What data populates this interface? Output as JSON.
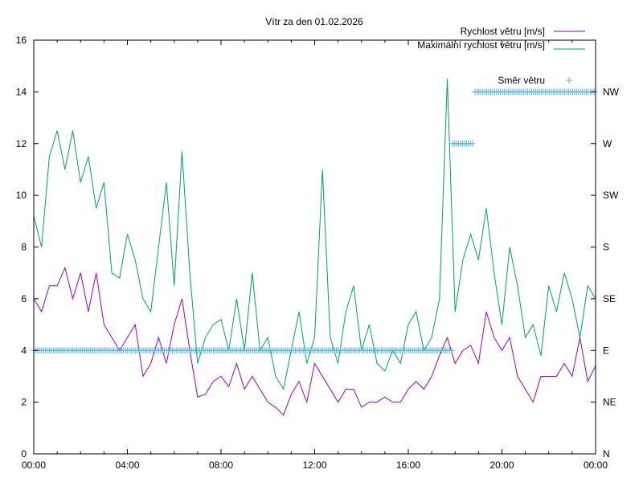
{
  "chart_data": {
    "type": "line",
    "title": "Vítr za den 01.02.2026",
    "xlabel": "",
    "ylabel": "",
    "x_unit": "hours",
    "xlim": [
      0,
      24
    ],
    "ylim": [
      0,
      16
    ],
    "y_ticks": [
      0,
      2,
      4,
      6,
      8,
      10,
      12,
      14,
      16
    ],
    "x_ticks": [
      {
        "value": 0,
        "label": "00:00"
      },
      {
        "value": 4,
        "label": "04:00"
      },
      {
        "value": 8,
        "label": "08:00"
      },
      {
        "value": 12,
        "label": "12:00"
      },
      {
        "value": 16,
        "label": "16:00"
      },
      {
        "value": 20,
        "label": "20:00"
      },
      {
        "value": 24,
        "label": "00:00"
      }
    ],
    "y2_ticks": [
      {
        "value": 0,
        "label": "N"
      },
      {
        "value": 2,
        "label": "NE"
      },
      {
        "value": 4,
        "label": "E"
      },
      {
        "value": 6,
        "label": "SE"
      },
      {
        "value": 8,
        "label": "S"
      },
      {
        "value": 10,
        "label": "SW"
      },
      {
        "value": 12,
        "label": "W"
      },
      {
        "value": 14,
        "label": "NW"
      }
    ],
    "grid": false,
    "legend_position": "top-right",
    "x_step_hours": 0.3333,
    "series": [
      {
        "name": "Rychlost větru [m/s]",
        "color": "#9400d3",
        "values": [
          6.0,
          5.5,
          6.5,
          6.5,
          7.2,
          6.0,
          7.0,
          5.5,
          7.0,
          5.0,
          4.5,
          4.0,
          4.5,
          5.0,
          3.0,
          3.5,
          4.5,
          3.5,
          5.0,
          6.0,
          4.0,
          2.2,
          2.3,
          2.8,
          3.0,
          2.6,
          3.5,
          2.5,
          3.0,
          2.5,
          2.0,
          1.8,
          1.5,
          2.3,
          2.8,
          2.0,
          3.5,
          3.0,
          2.5,
          2.0,
          2.5,
          2.5,
          1.8,
          2.0,
          2.0,
          2.2,
          2.0,
          2.0,
          2.5,
          2.8,
          2.5,
          3.0,
          3.8,
          4.5,
          3.5,
          4.0,
          4.2,
          3.5,
          5.5,
          4.5,
          4.0,
          4.5,
          3.0,
          2.5,
          2.0,
          3.0,
          3.0,
          3.0,
          3.5,
          3.0,
          4.5,
          2.8,
          3.4
        ]
      },
      {
        "name": "Maximální rychlost větru [m/s]",
        "color": "#009e73",
        "values": [
          9.2,
          8.0,
          11.5,
          12.5,
          11.0,
          12.5,
          10.5,
          11.5,
          9.5,
          10.5,
          7.0,
          6.8,
          8.5,
          7.5,
          6.0,
          5.5,
          8.0,
          10.5,
          6.5,
          11.7,
          7.0,
          3.5,
          4.5,
          5.0,
          5.2,
          4.0,
          6.0,
          4.0,
          7.0,
          4.0,
          4.5,
          3.0,
          2.5,
          4.0,
          5.5,
          3.5,
          4.5,
          11.0,
          4.5,
          3.5,
          5.5,
          6.5,
          4.0,
          5.0,
          3.5,
          3.2,
          4.0,
          3.5,
          5.0,
          5.5,
          4.0,
          4.5,
          6.0,
          14.5,
          5.5,
          7.5,
          8.5,
          7.5,
          9.5,
          7.0,
          5.0,
          8.0,
          6.5,
          4.5,
          5.0,
          3.8,
          6.5,
          5.5,
          7.0,
          6.0,
          4.5,
          6.5,
          6.0
        ]
      },
      {
        "name": "Směr větru",
        "color": "#56b4e9",
        "marker": "+",
        "segments": [
          {
            "direction": "E",
            "value": 4,
            "from": 0,
            "to": 17.85
          },
          {
            "direction": "W",
            "value": 12,
            "from": 17.9,
            "to": 18.8
          },
          {
            "direction": "NW",
            "value": 14,
            "from": 18.85,
            "to": 24
          }
        ]
      }
    ]
  }
}
